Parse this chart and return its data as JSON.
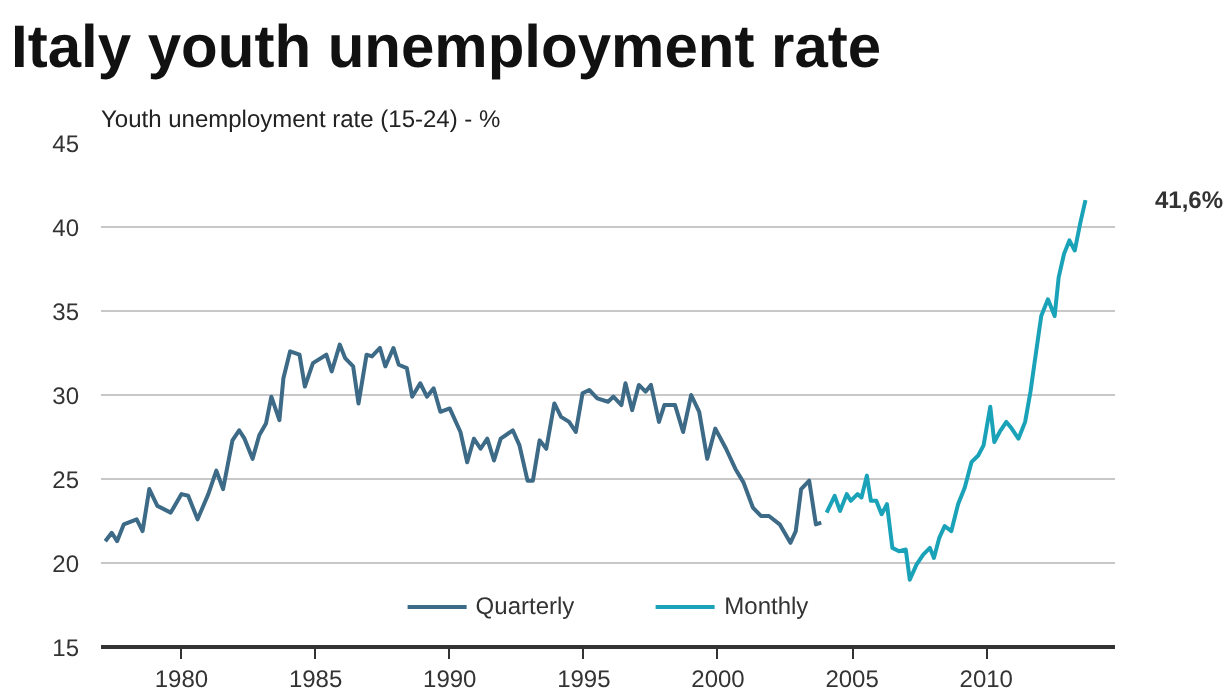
{
  "chart_data": {
    "type": "line",
    "title": "Italy youth unemployment rate",
    "subtitle": "Youth unemployment rate (15-24) - %",
    "xlim": [
      1977,
      2014.8
    ],
    "xticks": [
      1980,
      1985,
      1990,
      1995,
      2000,
      2005,
      2010
    ],
    "ylim": [
      15,
      45
    ],
    "yticks": [
      15,
      20,
      25,
      30,
      35,
      40,
      45
    ],
    "grid": "y",
    "legend": "bottom",
    "line_style": "solid",
    "marker": "none",
    "annotations": [
      {
        "text": "41,6%",
        "x": 2013.7,
        "y": 41.6
      }
    ],
    "series": [
      {
        "name": "Quarterly",
        "color": "#3d6a86",
        "x": [
          1977.16,
          1977.4,
          1977.6,
          1977.85,
          1978.33,
          1978.55,
          1978.8,
          1979.1,
          1979.6,
          1980.0,
          1980.25,
          1980.6,
          1981.0,
          1981.3,
          1981.55,
          1981.9,
          1982.15,
          1982.35,
          1982.65,
          1982.9,
          1983.15,
          1983.35,
          1983.65,
          1983.8,
          1984.05,
          1984.4,
          1984.6,
          1984.9,
          1985.4,
          1985.6,
          1985.9,
          1986.1,
          1986.4,
          1986.6,
          1986.9,
          1987.1,
          1987.4,
          1987.6,
          1987.9,
          1988.1,
          1988.4,
          1988.6,
          1988.9,
          1989.15,
          1989.4,
          1989.65,
          1990.0,
          1990.4,
          1990.65,
          1990.9,
          1991.15,
          1991.4,
          1991.65,
          1991.9,
          1992.35,
          1992.6,
          1992.9,
          1993.1,
          1993.35,
          1993.6,
          1993.9,
          1994.15,
          1994.45,
          1994.7,
          1994.95,
          1995.2,
          1995.5,
          1995.9,
          1996.1,
          1996.4,
          1996.55,
          1996.8,
          1997.05,
          1997.3,
          1997.5,
          1997.8,
          1998.0,
          1998.4,
          1998.7,
          1999.0,
          1999.3,
          1999.6,
          1999.9,
          2000.3,
          2000.65,
          2000.95,
          2001.3,
          2001.6,
          2001.9,
          2002.3,
          2002.7,
          2002.9,
          2003.1,
          2003.4,
          2003.65,
          2003.85
        ],
        "values": [
          21.3,
          21.8,
          21.3,
          22.3,
          22.6,
          21.9,
          24.4,
          23.4,
          23.0,
          24.1,
          24.0,
          22.6,
          24.1,
          25.5,
          24.4,
          27.3,
          27.9,
          27.4,
          26.2,
          27.6,
          28.3,
          29.9,
          28.5,
          31.0,
          32.6,
          32.4,
          30.5,
          31.9,
          32.4,
          31.4,
          33.0,
          32.2,
          31.7,
          29.5,
          32.4,
          32.3,
          32.8,
          31.7,
          32.8,
          31.8,
          31.6,
          29.9,
          30.7,
          29.9,
          30.4,
          29.0,
          29.2,
          27.8,
          26.0,
          27.4,
          26.8,
          27.4,
          26.1,
          27.4,
          27.9,
          27.0,
          24.9,
          24.9,
          27.3,
          26.8,
          29.5,
          28.7,
          28.4,
          27.8,
          30.1,
          30.3,
          29.8,
          29.6,
          29.9,
          29.4,
          30.7,
          29.1,
          30.6,
          30.2,
          30.6,
          28.4,
          29.4,
          29.4,
          27.8,
          30.0,
          29.0,
          26.2,
          28.0,
          26.8,
          25.6,
          24.8,
          23.3,
          22.8,
          22.8,
          22.3,
          21.2,
          21.9,
          24.4,
          24.9,
          22.3,
          22.4
        ]
      },
      {
        "name": "Monthly",
        "color": "#1aa3b8",
        "x": [
          2004.05,
          2004.35,
          2004.55,
          2004.8,
          2004.95,
          2005.2,
          2005.35,
          2005.55,
          2005.7,
          2005.9,
          2006.1,
          2006.3,
          2006.5,
          2006.75,
          2007.0,
          2007.15,
          2007.4,
          2007.65,
          2007.9,
          2008.05,
          2008.25,
          2008.45,
          2008.7,
          2008.95,
          2009.2,
          2009.45,
          2009.7,
          2009.9,
          2010.15,
          2010.3,
          2010.5,
          2010.75,
          2010.95,
          2011.2,
          2011.45,
          2011.65,
          2011.8,
          2012.05,
          2012.3,
          2012.55,
          2012.7,
          2012.9,
          2013.1,
          2013.3,
          2013.5,
          2013.7
        ],
        "values": [
          23.0,
          24.0,
          23.1,
          24.1,
          23.7,
          24.1,
          23.9,
          25.2,
          23.7,
          23.7,
          22.9,
          23.5,
          20.9,
          20.7,
          20.8,
          19.0,
          19.9,
          20.5,
          20.9,
          20.3,
          21.5,
          22.2,
          21.9,
          23.5,
          24.5,
          26.0,
          26.4,
          27.0,
          29.3,
          27.2,
          27.8,
          28.4,
          28.0,
          27.4,
          28.4,
          30.2,
          31.9,
          34.7,
          35.7,
          34.7,
          37.0,
          38.4,
          39.2,
          38.6,
          40.2,
          41.6
        ]
      }
    ]
  }
}
